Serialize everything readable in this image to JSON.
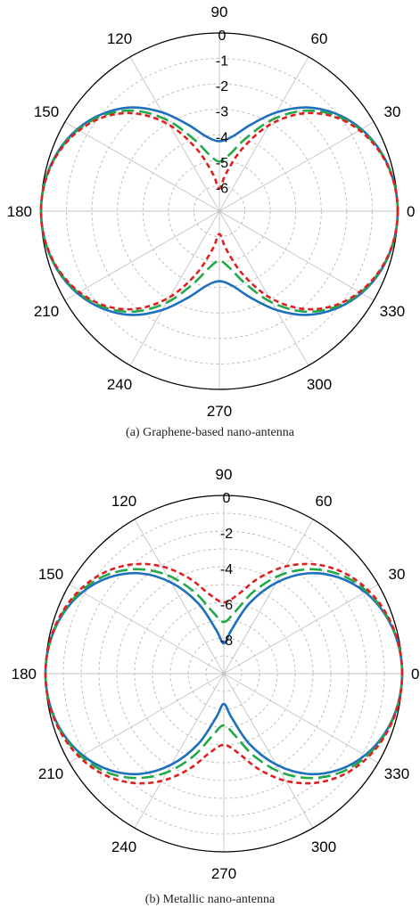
{
  "chart_data": [
    {
      "type": "polar-line",
      "caption": "(a) Graphene-based nano-antenna",
      "angle_ticks": [
        0,
        30,
        60,
        90,
        120,
        150,
        180,
        210,
        240,
        270,
        300,
        330
      ],
      "radial_ticks": [
        "0",
        "-1",
        "-2",
        "-3",
        "-4",
        "-5",
        "-6"
      ],
      "rlim": [
        -7,
        0
      ],
      "grid": true,
      "series": [
        {
          "color": "#1f6fbf",
          "dash": "solid",
          "theta": [
            0,
            10,
            20,
            30,
            40,
            50,
            60,
            70,
            80,
            90,
            100,
            110,
            120,
            130,
            140,
            150,
            160,
            170,
            180,
            190,
            200,
            210,
            220,
            230,
            240,
            250,
            260,
            270,
            280,
            290,
            300,
            310,
            320,
            330,
            340,
            350
          ],
          "r": [
            0,
            -0.06,
            -0.24,
            -0.56,
            -1.04,
            -1.68,
            -2.52,
            -3.38,
            -4.02,
            -4.25,
            -4.02,
            -3.38,
            -2.52,
            -1.68,
            -1.04,
            -0.56,
            -0.24,
            -0.06,
            0,
            -0.06,
            -0.24,
            -0.56,
            -1.04,
            -1.68,
            -2.52,
            -3.38,
            -4.02,
            -4.25,
            -4.02,
            -3.38,
            -2.52,
            -1.68,
            -1.04,
            -0.56,
            -0.24,
            -0.06
          ]
        },
        {
          "color": "#22a84a",
          "dash": "long-dash",
          "theta": [
            0,
            10,
            20,
            30,
            40,
            50,
            60,
            70,
            80,
            90,
            100,
            110,
            120,
            130,
            140,
            150,
            160,
            170,
            180,
            190,
            200,
            210,
            220,
            230,
            240,
            250,
            260,
            270,
            280,
            290,
            300,
            310,
            320,
            330,
            340,
            350
          ],
          "r": [
            0,
            -0.06,
            -0.26,
            -0.6,
            -1.12,
            -1.85,
            -2.85,
            -3.95,
            -4.75,
            -5.05,
            -4.75,
            -3.95,
            -2.85,
            -1.85,
            -1.12,
            -0.6,
            -0.26,
            -0.06,
            0,
            -0.06,
            -0.26,
            -0.6,
            -1.12,
            -1.85,
            -2.85,
            -3.95,
            -4.75,
            -5.05,
            -4.75,
            -3.95,
            -2.85,
            -1.85,
            -1.12,
            -0.6,
            -0.26,
            -0.06
          ]
        },
        {
          "color": "#e02020",
          "dash": "short-dash",
          "theta": [
            0,
            10,
            20,
            30,
            40,
            50,
            60,
            70,
            80,
            90,
            100,
            110,
            120,
            130,
            140,
            150,
            160,
            170,
            180,
            190,
            200,
            210,
            220,
            230,
            240,
            250,
            260,
            270,
            280,
            290,
            300,
            310,
            320,
            330,
            340,
            350
          ],
          "r": [
            0,
            -0.07,
            -0.28,
            -0.65,
            -1.2,
            -2.0,
            -3.1,
            -4.4,
            -5.5,
            -6.1,
            -5.5,
            -4.4,
            -3.1,
            -2.0,
            -1.2,
            -0.65,
            -0.28,
            -0.07,
            0,
            -0.07,
            -0.28,
            -0.65,
            -1.2,
            -2.0,
            -3.1,
            -4.4,
            -5.5,
            -6.1,
            -5.5,
            -4.4,
            -3.1,
            -2.0,
            -1.2,
            -0.65,
            -0.28,
            -0.07
          ]
        }
      ]
    },
    {
      "type": "polar-line",
      "caption": "(b) Metallic nano-antenna",
      "angle_ticks": [
        0,
        30,
        60,
        90,
        120,
        150,
        180,
        210,
        240,
        270,
        300,
        330
      ],
      "radial_ticks": [
        "0",
        "-2",
        "-4",
        "-6",
        "-8"
      ],
      "rlim": [
        -10,
        0
      ],
      "grid": true,
      "series": [
        {
          "color": "#1f6fbf",
          "dash": "solid",
          "theta": [
            0,
            10,
            20,
            30,
            40,
            50,
            60,
            70,
            80,
            90,
            100,
            110,
            120,
            130,
            140,
            150,
            160,
            170,
            180,
            190,
            200,
            210,
            220,
            230,
            240,
            250,
            260,
            270,
            280,
            290,
            300,
            310,
            320,
            330,
            340,
            350
          ],
          "r": [
            0,
            -0.09,
            -0.36,
            -0.85,
            -1.6,
            -2.65,
            -4.1,
            -5.8,
            -7.5,
            -8.3,
            -7.5,
            -5.8,
            -4.1,
            -2.65,
            -1.6,
            -0.85,
            -0.36,
            -0.09,
            0,
            -0.09,
            -0.36,
            -0.85,
            -1.6,
            -2.65,
            -4.1,
            -5.8,
            -7.5,
            -8.3,
            -7.5,
            -5.8,
            -4.1,
            -2.65,
            -1.6,
            -0.85,
            -0.36,
            -0.09
          ]
        },
        {
          "color": "#22a84a",
          "dash": "long-dash",
          "theta": [
            0,
            10,
            20,
            30,
            40,
            50,
            60,
            70,
            80,
            90,
            100,
            110,
            120,
            130,
            140,
            150,
            160,
            170,
            180,
            190,
            200,
            210,
            220,
            230,
            240,
            250,
            260,
            270,
            280,
            290,
            300,
            310,
            320,
            330,
            340,
            350
          ],
          "r": [
            0,
            -0.08,
            -0.32,
            -0.75,
            -1.4,
            -2.35,
            -3.6,
            -5.1,
            -6.5,
            -7.1,
            -6.5,
            -5.1,
            -3.6,
            -2.35,
            -1.4,
            -0.75,
            -0.32,
            -0.08,
            0,
            -0.08,
            -0.32,
            -0.75,
            -1.4,
            -2.35,
            -3.6,
            -5.1,
            -6.5,
            -7.1,
            -6.5,
            -5.1,
            -3.6,
            -2.35,
            -1.4,
            -0.75,
            -0.32,
            -0.08
          ]
        },
        {
          "color": "#e02020",
          "dash": "short-dash",
          "theta": [
            0,
            10,
            20,
            30,
            40,
            50,
            60,
            70,
            80,
            90,
            100,
            110,
            120,
            130,
            140,
            150,
            160,
            170,
            180,
            190,
            200,
            210,
            220,
            230,
            240,
            250,
            260,
            270,
            280,
            290,
            300,
            310,
            320,
            330,
            340,
            350
          ],
          "r": [
            0,
            -0.07,
            -0.28,
            -0.65,
            -1.2,
            -2.0,
            -3.05,
            -4.3,
            -5.5,
            -6.0,
            -5.5,
            -4.3,
            -3.05,
            -2.0,
            -1.2,
            -0.65,
            -0.28,
            -0.07,
            0,
            -0.07,
            -0.28,
            -0.65,
            -1.2,
            -2.0,
            -3.05,
            -4.3,
            -5.5,
            -6.0,
            -5.5,
            -4.3,
            -3.05,
            -2.0,
            -1.2,
            -0.65,
            -0.28,
            -0.07
          ]
        }
      ]
    }
  ]
}
